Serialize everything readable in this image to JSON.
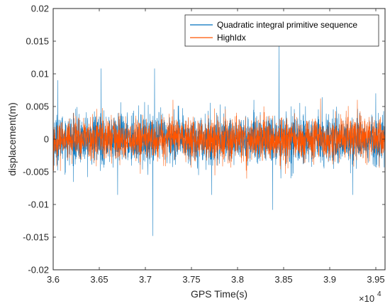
{
  "chart_data": {
    "type": "line",
    "title": "",
    "xlabel": "GPS Time(s)",
    "ylabel": "displacement(m)",
    "x_exponent": {
      "base": "×10",
      "power": "4"
    },
    "xlim": [
      36000,
      39600
    ],
    "ylim": [
      -0.02,
      0.02
    ],
    "x_ticks": [
      36000,
      36500,
      37000,
      37500,
      38000,
      38500,
      39000,
      39500
    ],
    "x_tick_labels": [
      "3.6",
      "3.65",
      "3.7",
      "3.75",
      "3.8",
      "3.85",
      "3.9",
      "3.95"
    ],
    "y_ticks": [
      -0.02,
      -0.015,
      -0.01,
      -0.005,
      0,
      0.005,
      0.01,
      0.015,
      0.02
    ],
    "y_tick_labels": [
      "-0.02",
      "-0.015",
      "-0.01",
      "-0.005",
      "0",
      "0.005",
      "0.01",
      "0.015",
      "0.02"
    ],
    "grid": false,
    "legend_position": "top-right",
    "series": [
      {
        "name": "Quadratic integral primitive sequence",
        "color": "#0072BD",
        "noise_amplitude": 0.0045,
        "spikes": [
          {
            "x": 36520,
            "y": 0.0108
          },
          {
            "x": 36700,
            "y": -0.0085
          },
          {
            "x": 37080,
            "y": -0.0148
          },
          {
            "x": 37100,
            "y": 0.0108
          },
          {
            "x": 37720,
            "y": -0.0085
          },
          {
            "x": 38380,
            "y": -0.0108
          },
          {
            "x": 38450,
            "y": 0.0148
          },
          {
            "x": 39250,
            "y": -0.0085
          },
          {
            "x": 39500,
            "y": 0.007
          },
          {
            "x": 36050,
            "y": 0.009
          }
        ]
      },
      {
        "name": "HighIdx",
        "color": "#FF5500",
        "noise_amplitude": 0.0038,
        "spikes": [
          {
            "x": 37300,
            "y": 0.006
          },
          {
            "x": 38100,
            "y": -0.006
          },
          {
            "x": 38900,
            "y": 0.0062
          },
          {
            "x": 39300,
            "y": 0.006
          }
        ]
      }
    ]
  }
}
